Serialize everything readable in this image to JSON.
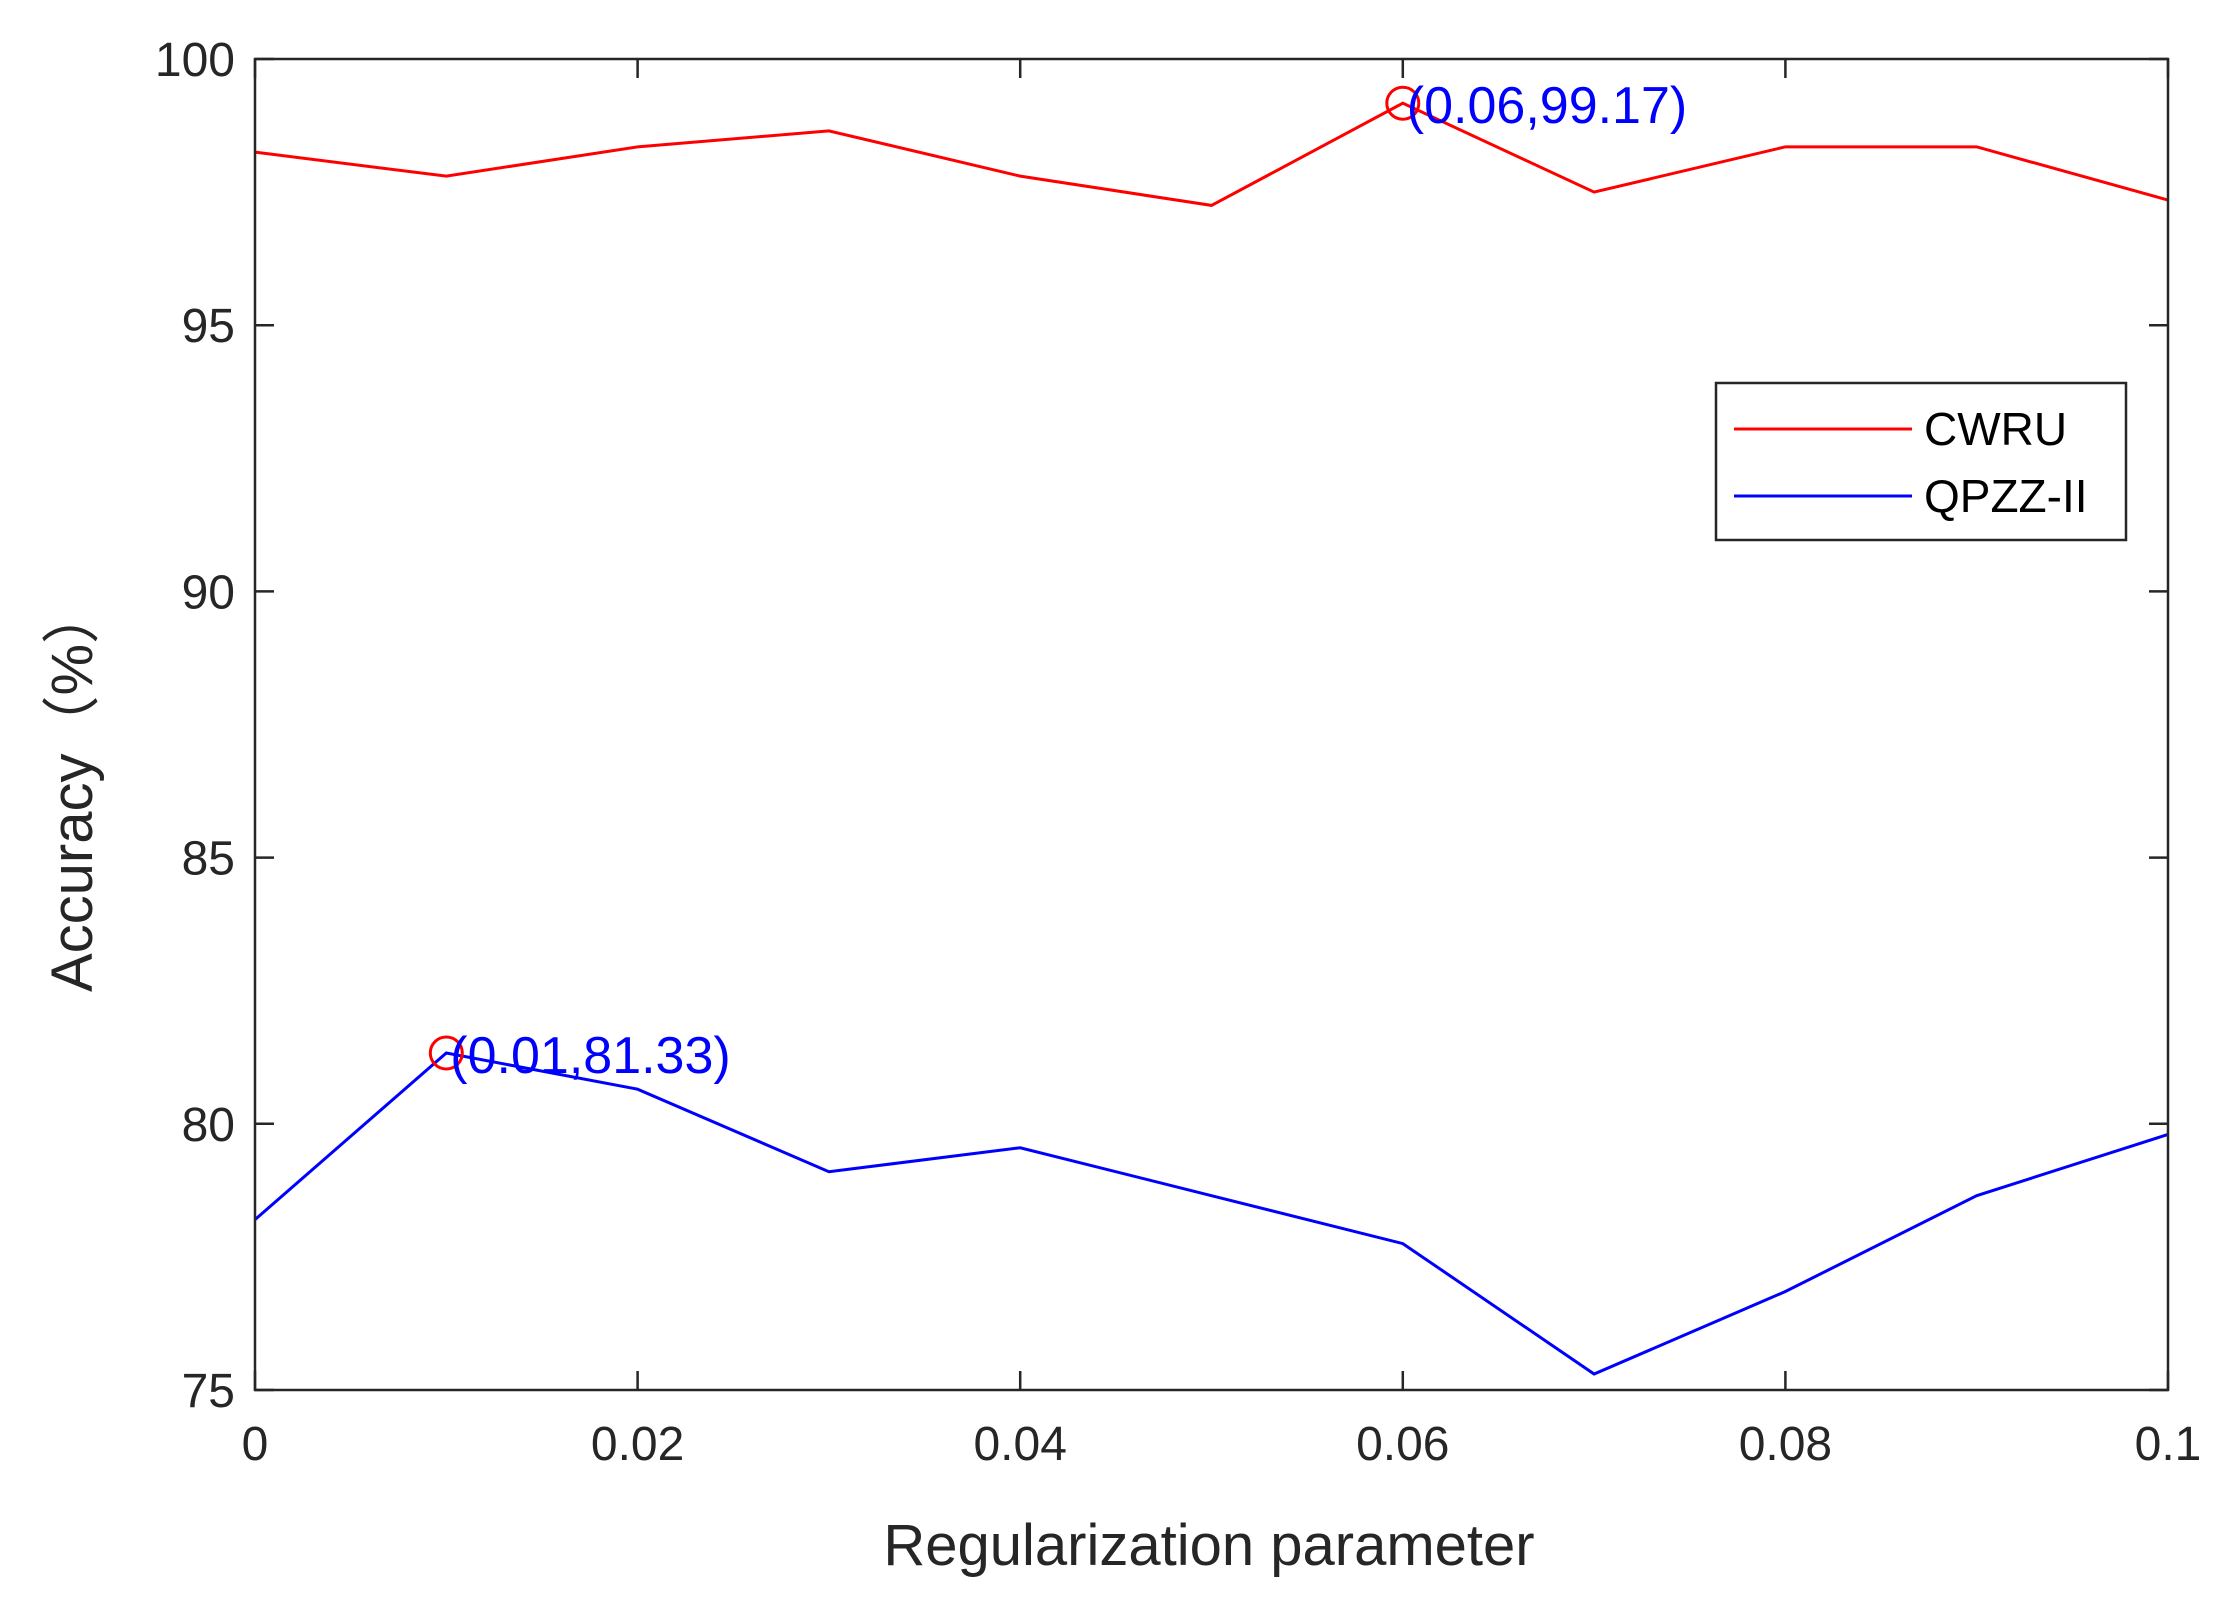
{
  "chart_data": {
    "type": "line",
    "xlabel": "Regularization parameter",
    "ylabel": "Accuracy（%）",
    "xlim": [
      0,
      0.1
    ],
    "ylim": [
      75,
      100
    ],
    "x_ticks": [
      0,
      0.02,
      0.04,
      0.06,
      0.08,
      0.1
    ],
    "x_tick_labels": [
      "0",
      "0.02",
      "0.04",
      "0.06",
      "0.08",
      "0.1"
    ],
    "y_ticks": [
      75,
      80,
      85,
      90,
      95,
      100
    ],
    "y_tick_labels": [
      "75",
      "80",
      "85",
      "90",
      "95",
      "100"
    ],
    "grid": false,
    "legend_position": "right",
    "x": [
      0,
      0.01,
      0.02,
      0.03,
      0.04,
      0.05,
      0.06,
      0.07,
      0.08,
      0.09,
      0.1
    ],
    "series": [
      {
        "name": "CWRU",
        "color": "#ff0000",
        "values": [
          98.25,
          97.8,
          98.35,
          98.65,
          97.8,
          97.25,
          99.17,
          97.5,
          98.35,
          98.35,
          97.35
        ]
      },
      {
        "name": "QPZZ-II",
        "color": "#0000ff",
        "values": [
          78.2,
          81.33,
          80.65,
          79.1,
          79.55,
          78.65,
          77.75,
          75.3,
          76.85,
          78.65,
          79.8
        ]
      }
    ],
    "annotations": [
      {
        "x": 0.06,
        "y": 99.17,
        "text": "(0.06,99.17)",
        "marker_color": "#ff0000",
        "text_color": "#0000ff"
      },
      {
        "x": 0.01,
        "y": 81.33,
        "text": "(0.01,81.33)",
        "marker_color": "#ff0000",
        "text_color": "#0000ff"
      }
    ]
  }
}
